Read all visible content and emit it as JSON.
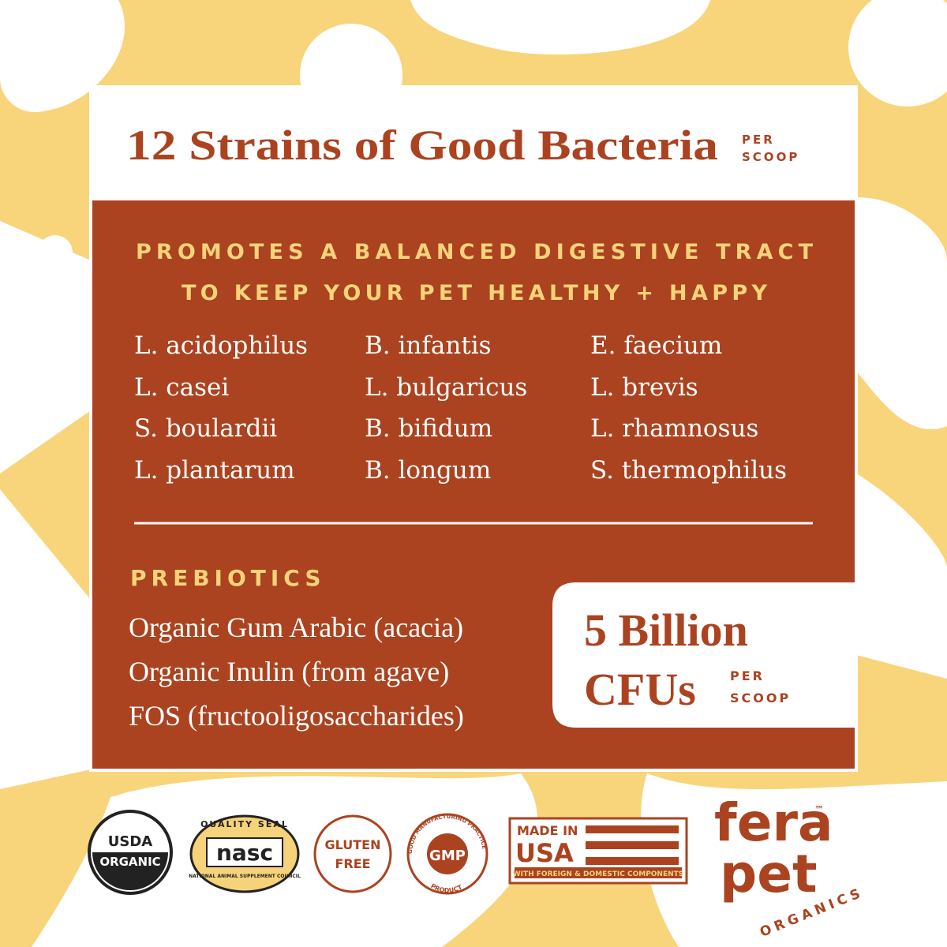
{
  "header": {
    "title": "12 Strains of Good Bacteria",
    "per": "PER",
    "scoop": "SCOOP"
  },
  "tagline": [
    "PROMOTES A BALANCED DIGESTIVE TRACT",
    "TO KEEP YOUR PET HEALTHY + HAPPY"
  ],
  "strains": [
    [
      "L. acidophilus",
      "L. casei",
      "S. boulardii",
      "L. plantarum"
    ],
    [
      "B. infantis",
      "L. bulgaricus",
      "B. bifidum",
      "B. longum"
    ],
    [
      "E. faecium",
      "L. brevis",
      "L. rhamnosus",
      "S. thermophilus"
    ]
  ],
  "prebiotics": {
    "title": "PREBIOTICS",
    "items": [
      "Organic Gum Arabic (acacia)",
      "Organic Inulin (from agave)",
      "FOS (fructooligosaccharides)"
    ]
  },
  "cfu": {
    "line1": "5 Billion",
    "line2": "CFUs",
    "per": "PER",
    "scoop": "SCOOP"
  },
  "badges": {
    "usda": [
      "USDA",
      "ORGANIC"
    ],
    "nasc": [
      "QUALITY SEAL",
      "nasc",
      "NATIONAL ANIMAL SUPPLEMENT COUNCIL"
    ],
    "gluten": [
      "GLUTEN",
      "FREE"
    ],
    "gmp": [
      "GMP",
      "GOOD MANUFACTURING PRACTICE",
      "PRODUCT"
    ],
    "usa": [
      "MADE IN",
      "USA",
      "WITH FOREIGN & DOMESTIC COMPONENTS"
    ]
  },
  "brand": {
    "line1": "fera",
    "line2": "pet",
    "tm": "™",
    "sub": "ORGANICS"
  }
}
